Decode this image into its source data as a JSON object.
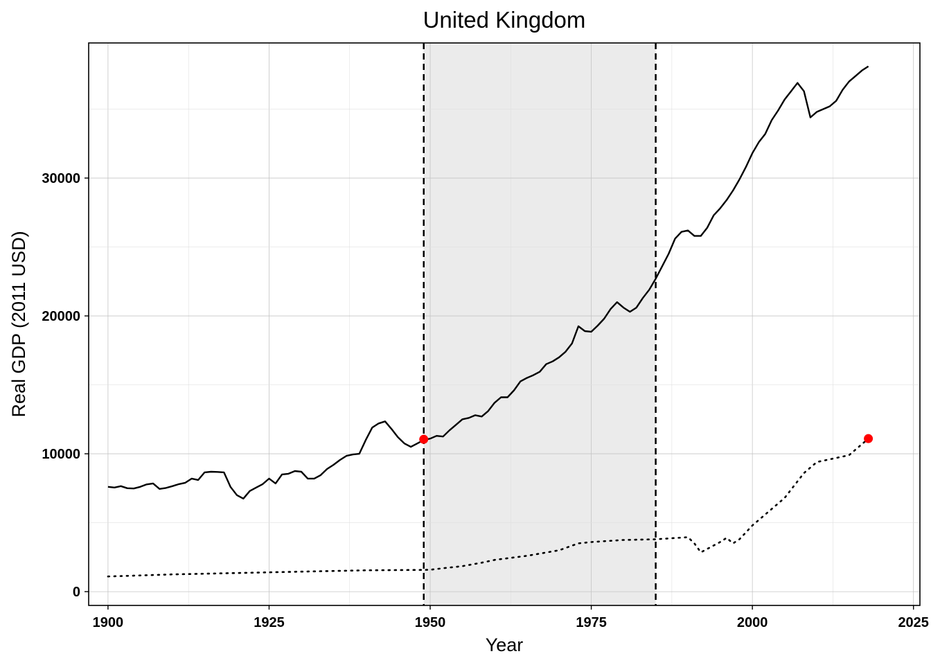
{
  "chart_data": {
    "type": "line",
    "title": "United Kingdom",
    "xlabel": "Year",
    "ylabel": "Real GDP (2011 USD)",
    "xlim": [
      1897,
      2026
    ],
    "ylim": [
      -1000,
      39800
    ],
    "x_ticks": [
      1900,
      1925,
      1950,
      1975,
      2000,
      2025
    ],
    "y_ticks": [
      0,
      10000,
      20000,
      30000
    ],
    "grid": true,
    "shaded_region": {
      "x_start": 1949,
      "x_end": 1985
    },
    "vertical_lines": [
      1949,
      1985
    ],
    "series": [
      {
        "style": "solid",
        "points": [
          [
            1900,
            7600
          ],
          [
            1901,
            7550
          ],
          [
            1902,
            7650
          ],
          [
            1903,
            7500
          ],
          [
            1904,
            7480
          ],
          [
            1905,
            7600
          ],
          [
            1906,
            7780
          ],
          [
            1907,
            7850
          ],
          [
            1908,
            7450
          ],
          [
            1909,
            7520
          ],
          [
            1910,
            7650
          ],
          [
            1911,
            7800
          ],
          [
            1912,
            7900
          ],
          [
            1913,
            8200
          ],
          [
            1914,
            8100
          ],
          [
            1915,
            8650
          ],
          [
            1916,
            8700
          ],
          [
            1917,
            8680
          ],
          [
            1918,
            8650
          ],
          [
            1919,
            7600
          ],
          [
            1920,
            7000
          ],
          [
            1921,
            6750
          ],
          [
            1922,
            7300
          ],
          [
            1923,
            7550
          ],
          [
            1924,
            7800
          ],
          [
            1925,
            8200
          ],
          [
            1926,
            7850
          ],
          [
            1927,
            8500
          ],
          [
            1928,
            8550
          ],
          [
            1929,
            8750
          ],
          [
            1930,
            8700
          ],
          [
            1931,
            8200
          ],
          [
            1932,
            8200
          ],
          [
            1933,
            8450
          ],
          [
            1934,
            8900
          ],
          [
            1935,
            9200
          ],
          [
            1936,
            9550
          ],
          [
            1937,
            9850
          ],
          [
            1938,
            9950
          ],
          [
            1939,
            10000
          ],
          [
            1940,
            11000
          ],
          [
            1941,
            11900
          ],
          [
            1942,
            12200
          ],
          [
            1943,
            12350
          ],
          [
            1944,
            11800
          ],
          [
            1945,
            11200
          ],
          [
            1946,
            10750
          ],
          [
            1947,
            10500
          ],
          [
            1948,
            10750
          ],
          [
            1949,
            11000
          ],
          [
            1950,
            11100
          ],
          [
            1951,
            11300
          ],
          [
            1952,
            11250
          ],
          [
            1953,
            11700
          ],
          [
            1954,
            12100
          ],
          [
            1955,
            12500
          ],
          [
            1956,
            12600
          ],
          [
            1957,
            12800
          ],
          [
            1958,
            12700
          ],
          [
            1959,
            13100
          ],
          [
            1960,
            13700
          ],
          [
            1961,
            14100
          ],
          [
            1962,
            14100
          ],
          [
            1963,
            14600
          ],
          [
            1964,
            15250
          ],
          [
            1965,
            15500
          ],
          [
            1966,
            15700
          ],
          [
            1967,
            15950
          ],
          [
            1968,
            16500
          ],
          [
            1969,
            16700
          ],
          [
            1970,
            17000
          ],
          [
            1971,
            17400
          ],
          [
            1972,
            18000
          ],
          [
            1973,
            19250
          ],
          [
            1974,
            18900
          ],
          [
            1975,
            18850
          ],
          [
            1976,
            19300
          ],
          [
            1977,
            19800
          ],
          [
            1978,
            20500
          ],
          [
            1979,
            21000
          ],
          [
            1980,
            20600
          ],
          [
            1981,
            20300
          ],
          [
            1982,
            20600
          ],
          [
            1983,
            21300
          ],
          [
            1984,
            21900
          ],
          [
            1985,
            22700
          ],
          [
            1986,
            23600
          ],
          [
            1987,
            24500
          ],
          [
            1988,
            25600
          ],
          [
            1989,
            26100
          ],
          [
            1990,
            26200
          ],
          [
            1991,
            25800
          ],
          [
            1992,
            25800
          ],
          [
            1993,
            26400
          ],
          [
            1994,
            27300
          ],
          [
            1995,
            27800
          ],
          [
            1996,
            28400
          ],
          [
            1997,
            29100
          ],
          [
            1998,
            29900
          ],
          [
            1999,
            30800
          ],
          [
            2000,
            31800
          ],
          [
            2001,
            32600
          ],
          [
            2002,
            33200
          ],
          [
            2003,
            34200
          ],
          [
            2004,
            34900
          ],
          [
            2005,
            35700
          ],
          [
            2006,
            36300
          ],
          [
            2007,
            36900
          ],
          [
            2008,
            36300
          ],
          [
            2009,
            34400
          ],
          [
            2010,
            34800
          ],
          [
            2011,
            35000
          ],
          [
            2012,
            35200
          ],
          [
            2013,
            35600
          ],
          [
            2014,
            36400
          ],
          [
            2015,
            37000
          ],
          [
            2016,
            37400
          ],
          [
            2017,
            37800
          ],
          [
            2018,
            38100
          ]
        ]
      },
      {
        "style": "dotted",
        "points": [
          [
            1900,
            1100
          ],
          [
            1910,
            1250
          ],
          [
            1920,
            1350
          ],
          [
            1930,
            1450
          ],
          [
            1940,
            1550
          ],
          [
            1949,
            1580
          ],
          [
            1950,
            1590
          ],
          [
            1952,
            1700
          ],
          [
            1955,
            1850
          ],
          [
            1958,
            2100
          ],
          [
            1960,
            2300
          ],
          [
            1965,
            2600
          ],
          [
            1970,
            3000
          ],
          [
            1973,
            3500
          ],
          [
            1975,
            3600
          ],
          [
            1980,
            3750
          ],
          [
            1985,
            3800
          ],
          [
            1990,
            3950
          ],
          [
            1991,
            3500
          ],
          [
            1992,
            2850
          ],
          [
            1993,
            3100
          ],
          [
            1995,
            3600
          ],
          [
            1996,
            3900
          ],
          [
            1997,
            3500
          ],
          [
            1998,
            3800
          ],
          [
            2000,
            4800
          ],
          [
            2005,
            6800
          ],
          [
            2008,
            8600
          ],
          [
            2010,
            9400
          ],
          [
            2015,
            9900
          ],
          [
            2018,
            11100
          ]
        ]
      }
    ],
    "highlight_points": [
      {
        "x": 1949,
        "y": 11050,
        "color": "#ff0000"
      },
      {
        "x": 2018,
        "y": 11100,
        "color": "#ff0000"
      }
    ],
    "colors": {
      "line": "#000000",
      "shade": "#ebebeb",
      "grid": "#bbbbbb",
      "marker": "#ff0000"
    }
  }
}
